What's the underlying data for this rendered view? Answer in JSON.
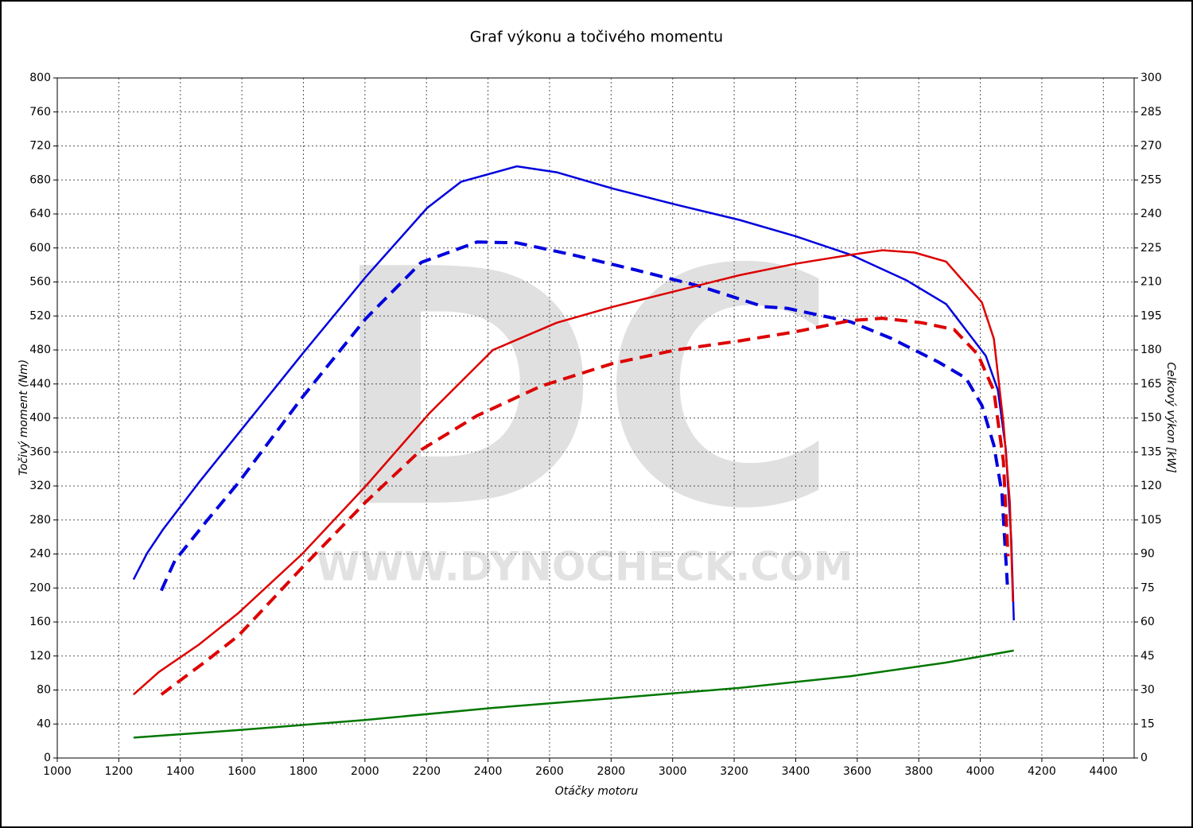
{
  "chart_data": {
    "type": "line",
    "title": "Graf výkonu a točivého momentu",
    "xlabel": "Otáčky motoru",
    "ylabel": "Točivý moment (Nm)",
    "y2label": "Celkový výkon [kW]",
    "watermark": {
      "logo": "DC",
      "url": "WWW.DYNOCHECK.COM"
    },
    "xlim": [
      1000,
      4500
    ],
    "xticks": [
      1000,
      1200,
      1400,
      1600,
      1800,
      2000,
      2200,
      2400,
      2600,
      2800,
      3000,
      3200,
      3400,
      3600,
      3800,
      4000,
      4200,
      4400
    ],
    "ylim": [
      0,
      800
    ],
    "yticks": [
      0,
      40,
      80,
      120,
      160,
      200,
      240,
      280,
      320,
      360,
      400,
      440,
      480,
      520,
      560,
      600,
      640,
      680,
      720,
      760,
      800
    ],
    "y2lim": [
      0,
      300
    ],
    "y2ticks": [
      0,
      15,
      30,
      45,
      60,
      75,
      90,
      105,
      120,
      135,
      150,
      165,
      180,
      195,
      210,
      225,
      240,
      255,
      270,
      285,
      300
    ],
    "grid": true,
    "series": [
      {
        "color": "#0000dd",
        "dashed": false,
        "x": [
          1248,
          1292,
          1344,
          1460,
          1589,
          1796,
          2003,
          2202,
          2313,
          2494,
          2623,
          2804,
          3010,
          3217,
          3398,
          3579,
          3760,
          3889,
          4018,
          4057,
          4083,
          4101,
          4109
        ],
        "values": [
          210,
          241,
          269,
          324,
          382,
          475,
          566,
          647,
          678,
          696,
          689,
          670,
          651,
          633,
          614,
          592,
          562,
          534,
          473,
          433,
          363,
          255,
          162
        ]
      },
      {
        "color": "#0000dd",
        "dashed": true,
        "x": [
          1338,
          1382,
          1486,
          1589,
          1796,
          2003,
          2183,
          2364,
          2494,
          2674,
          2881,
          3088,
          3295,
          3372,
          3579,
          3708,
          3863,
          3953,
          4005,
          4044,
          4070,
          4088
        ],
        "values": [
          197,
          232,
          279,
          324,
          424,
          517,
          583,
          607,
          606,
          592,
          574,
          555,
          531,
          529,
          513,
          494,
          466,
          447,
          415,
          368,
          312,
          204
        ]
      },
      {
        "color": "#dd0000",
        "dashed": false,
        "axis": "y2",
        "x": [
          1248,
          1331,
          1460,
          1589,
          1796,
          2003,
          2209,
          2416,
          2623,
          2804,
          3010,
          3217,
          3398,
          3579,
          3682,
          3786,
          3889,
          4005,
          4044,
          4075,
          4096,
          4106
        ],
        "values": [
          28,
          38,
          50,
          64,
          90,
          120,
          152,
          180,
          192,
          199,
          206,
          213,
          218,
          222,
          224,
          223,
          219,
          201,
          185,
          148,
          113,
          69
        ]
      },
      {
        "color": "#dd0000",
        "dashed": true,
        "axis": "y2",
        "x": [
          1338,
          1486,
          1589,
          1796,
          2003,
          2183,
          2364,
          2571,
          2804,
          3010,
          3217,
          3398,
          3579,
          3682,
          3811,
          3915,
          3992,
          4044,
          4075,
          4090
        ],
        "values": [
          28,
          43,
          54,
          84,
          113,
          136,
          151,
          164,
          174,
          180,
          184,
          188,
          193,
          194,
          192,
          189,
          178,
          162,
          131,
          89
        ]
      },
      {
        "color": "#007700",
        "dashed": false,
        "axis": "y2",
        "x": [
          1248,
          1589,
          2003,
          2416,
          2804,
          3217,
          3579,
          3889,
          4109
        ],
        "values": [
          9.0,
          12.3,
          16.8,
          22.1,
          26.3,
          30.9,
          36.1,
          42.1,
          47.4
        ]
      }
    ]
  }
}
